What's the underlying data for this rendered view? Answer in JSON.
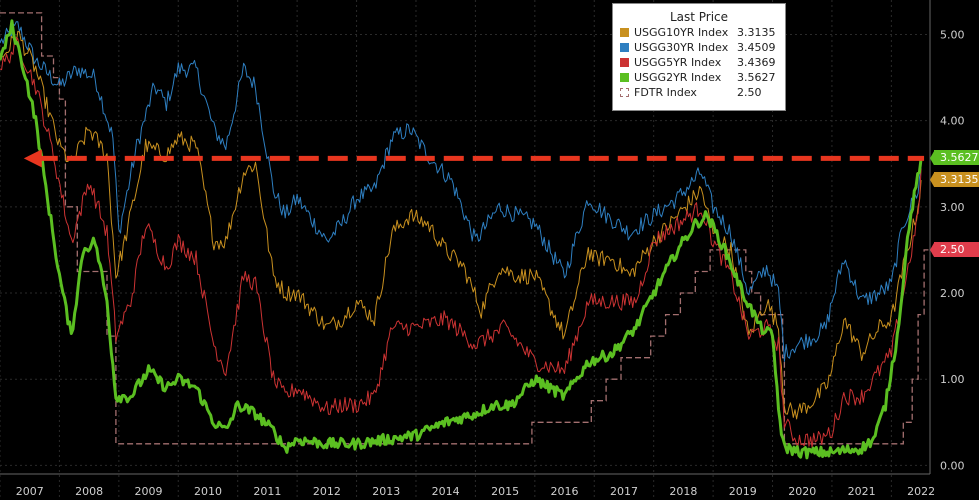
{
  "chart_data": {
    "type": "line",
    "title": "",
    "xlabel": "",
    "ylabel": "",
    "x_range": [
      2007.0,
      2022.65
    ],
    "ylim": [
      -0.1,
      5.4
    ],
    "x_ticks": [
      "2007",
      "2008",
      "2009",
      "2010",
      "2011",
      "2012",
      "2013",
      "2014",
      "2015",
      "2016",
      "2017",
      "2018",
      "2019",
      "2020",
      "2021",
      "2022"
    ],
    "y_ticks": [
      "0.00",
      "1.00",
      "2.00",
      "3.00",
      "4.00",
      "5.00"
    ],
    "legend_title": "Last Price",
    "series": [
      {
        "name": "USGG10YR Index",
        "last": "3.3135",
        "color": "#c8901f",
        "style": "solid",
        "x": [
          2007.0,
          2007.3,
          2007.6,
          2008.0,
          2008.2,
          2008.5,
          2008.8,
          2008.95,
          2009.1,
          2009.45,
          2009.8,
          2010.0,
          2010.3,
          2010.6,
          2010.8,
          2011.1,
          2011.3,
          2011.6,
          2011.8,
          2012.0,
          2012.5,
          2012.75,
          2013.0,
          2013.3,
          2013.6,
          2013.9,
          2014.2,
          2014.5,
          2014.8,
          2015.1,
          2015.4,
          2015.7,
          2016.0,
          2016.5,
          2016.9,
          2017.0,
          2017.3,
          2017.6,
          2018.0,
          2018.4,
          2018.8,
          2019.0,
          2019.3,
          2019.6,
          2019.9,
          2020.1,
          2020.2,
          2020.35,
          2020.6,
          2020.9,
          2021.0,
          2021.2,
          2021.5,
          2021.8,
          2022.0,
          2022.2,
          2022.45,
          2022.5
        ],
        "y": [
          4.7,
          5.0,
          4.6,
          3.7,
          3.5,
          3.9,
          3.6,
          2.2,
          2.6,
          3.7,
          3.6,
          3.8,
          3.7,
          2.6,
          2.6,
          3.4,
          3.5,
          2.2,
          2.0,
          2.0,
          1.6,
          1.7,
          1.9,
          1.7,
          2.7,
          2.9,
          2.8,
          2.5,
          2.3,
          1.8,
          2.3,
          2.2,
          2.2,
          1.5,
          2.5,
          2.4,
          2.4,
          2.2,
          2.6,
          2.9,
          3.2,
          2.7,
          2.5,
          1.5,
          1.9,
          1.6,
          0.7,
          0.6,
          0.7,
          0.9,
          1.1,
          1.7,
          1.3,
          1.6,
          1.7,
          2.3,
          3.0,
          3.31
        ]
      },
      {
        "name": "USGG30YR Index",
        "last": "3.4509",
        "color": "#2e7fc1",
        "style": "solid",
        "x": [
          2007.0,
          2007.3,
          2007.6,
          2008.0,
          2008.3,
          2008.6,
          2008.9,
          2009.0,
          2009.3,
          2009.6,
          2009.8,
          2010.0,
          2010.3,
          2010.6,
          2010.8,
          2011.1,
          2011.3,
          2011.6,
          2011.8,
          2012.0,
          2012.5,
          2012.75,
          2013.0,
          2013.3,
          2013.6,
          2013.9,
          2014.2,
          2014.6,
          2015.0,
          2015.4,
          2015.7,
          2016.0,
          2016.5,
          2016.9,
          2017.2,
          2017.6,
          2018.0,
          2018.4,
          2018.8,
          2019.0,
          2019.3,
          2019.6,
          2019.9,
          2020.1,
          2020.2,
          2020.4,
          2020.7,
          2020.9,
          2021.0,
          2021.2,
          2021.5,
          2021.8,
          2022.0,
          2022.2,
          2022.45,
          2022.5
        ],
        "y": [
          4.9,
          5.1,
          4.7,
          4.4,
          4.6,
          4.5,
          3.8,
          2.7,
          3.7,
          4.4,
          4.2,
          4.6,
          4.6,
          3.9,
          3.7,
          4.6,
          4.4,
          3.2,
          2.9,
          3.1,
          2.6,
          2.8,
          3.1,
          3.2,
          3.8,
          3.9,
          3.6,
          3.3,
          2.6,
          3.0,
          2.9,
          2.8,
          2.2,
          3.1,
          2.9,
          2.7,
          2.9,
          3.1,
          3.4,
          3.0,
          2.7,
          2.0,
          2.3,
          2.0,
          1.3,
          1.4,
          1.5,
          1.6,
          1.9,
          2.4,
          1.9,
          2.0,
          2.1,
          2.8,
          3.2,
          3.45
        ]
      },
      {
        "name": "USGG5YR Index",
        "last": "3.4369",
        "color": "#cc3333",
        "style": "solid",
        "x": [
          2007.0,
          2007.3,
          2007.6,
          2007.9,
          2008.2,
          2008.5,
          2008.8,
          2008.95,
          2009.2,
          2009.45,
          2009.8,
          2010.0,
          2010.3,
          2010.6,
          2010.8,
          2011.1,
          2011.3,
          2011.6,
          2011.8,
          2012.0,
          2012.5,
          2012.75,
          2013.0,
          2013.3,
          2013.6,
          2014.0,
          2014.5,
          2015.0,
          2015.5,
          2016.0,
          2016.5,
          2016.9,
          2017.3,
          2017.7,
          2018.0,
          2018.4,
          2018.8,
          2019.0,
          2019.3,
          2019.6,
          2019.9,
          2020.1,
          2020.2,
          2020.4,
          2020.8,
          2021.0,
          2021.2,
          2021.5,
          2021.8,
          2022.0,
          2022.2,
          2022.45,
          2022.5
        ],
        "y": [
          4.6,
          4.9,
          4.4,
          3.6,
          2.6,
          3.3,
          2.7,
          1.5,
          1.9,
          2.8,
          2.3,
          2.6,
          2.4,
          1.4,
          1.1,
          2.2,
          2.1,
          1.0,
          0.8,
          0.9,
          0.65,
          0.7,
          0.7,
          0.8,
          1.6,
          1.6,
          1.7,
          1.4,
          1.6,
          1.2,
          1.1,
          1.9,
          1.9,
          1.9,
          2.6,
          2.8,
          3.0,
          2.6,
          2.2,
          1.5,
          1.6,
          1.4,
          0.5,
          0.3,
          0.3,
          0.4,
          0.8,
          0.8,
          1.1,
          1.3,
          2.0,
          2.9,
          3.44
        ]
      },
      {
        "name": "USGG2YR Index",
        "last": "3.5627",
        "color": "#5bbf21",
        "style": "solid",
        "x": [
          2007.0,
          2007.2,
          2007.4,
          2007.6,
          2007.8,
          2008.0,
          2008.2,
          2008.4,
          2008.6,
          2008.8,
          2008.95,
          2009.2,
          2009.5,
          2009.8,
          2010.0,
          2010.3,
          2010.6,
          2010.8,
          2011.0,
          2011.3,
          2011.6,
          2011.8,
          2012.0,
          2012.5,
          2013.0,
          2013.5,
          2014.0,
          2014.5,
          2015.0,
          2015.3,
          2015.6,
          2016.0,
          2016.5,
          2016.9,
          2017.3,
          2017.7,
          2018.0,
          2018.4,
          2018.7,
          2018.9,
          2019.2,
          2019.5,
          2019.8,
          2020.0,
          2020.15,
          2020.25,
          2020.5,
          2021.0,
          2021.5,
          2021.7,
          2021.9,
          2022.1,
          2022.3,
          2022.5
        ],
        "y": [
          4.7,
          5.1,
          4.6,
          4.0,
          3.1,
          2.2,
          1.5,
          2.5,
          2.6,
          1.9,
          0.8,
          0.8,
          1.1,
          0.9,
          1.0,
          0.9,
          0.5,
          0.4,
          0.7,
          0.6,
          0.4,
          0.2,
          0.3,
          0.25,
          0.25,
          0.3,
          0.35,
          0.5,
          0.6,
          0.7,
          0.7,
          1.0,
          0.8,
          1.2,
          1.3,
          1.6,
          2.0,
          2.5,
          2.8,
          2.9,
          2.5,
          2.0,
          1.6,
          1.5,
          0.3,
          0.2,
          0.15,
          0.15,
          0.2,
          0.3,
          0.7,
          1.5,
          2.8,
          3.56
        ]
      },
      {
        "name": "FDTR Index",
        "last": "2.50",
        "color": "#a36f6f",
        "style": "dashed-step",
        "x": [
          2007.0,
          2007.7,
          2007.9,
          2008.0,
          2008.1,
          2008.3,
          2008.8,
          2008.95,
          2015.95,
          2016.95,
          2017.2,
          2017.45,
          2017.95,
          2018.2,
          2018.45,
          2018.7,
          2018.95,
          2019.55,
          2019.65,
          2019.8,
          2020.17,
          2020.2,
          2022.2,
          2022.35,
          2022.45,
          2022.55,
          2022.65
        ],
        "y": [
          5.25,
          4.75,
          4.5,
          4.25,
          3.0,
          2.25,
          1.5,
          0.25,
          0.5,
          0.75,
          1.0,
          1.25,
          1.5,
          1.75,
          2.0,
          2.25,
          2.5,
          2.25,
          2.0,
          1.75,
          1.25,
          0.25,
          0.5,
          1.0,
          1.75,
          2.5,
          2.5
        ]
      }
    ],
    "reference_line": {
      "label": "3.5627",
      "value": 3.5627,
      "from_x": 2007.4,
      "to_x": 2022.55,
      "color": "#e8361f",
      "style": "dashed-arrow"
    },
    "price_labels": [
      {
        "text": "3.5627",
        "value": 3.5627,
        "color": "#5bbf21"
      },
      {
        "text": "3.3135",
        "value": 3.3135,
        "color": "#c8901f"
      },
      {
        "text": "2.50",
        "value": 2.5,
        "color": "#e03d4c"
      }
    ],
    "legend_position": "top-right"
  }
}
